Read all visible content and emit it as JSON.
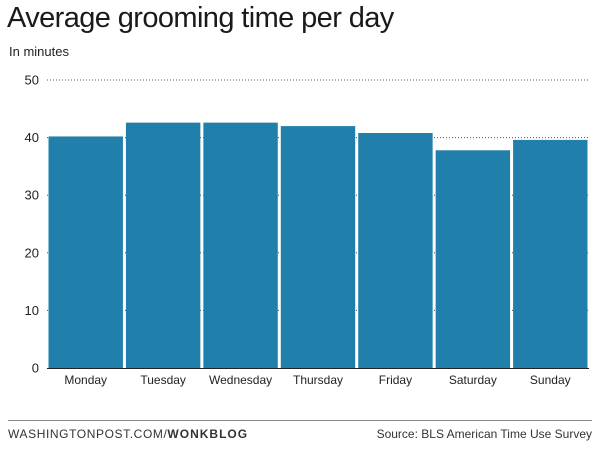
{
  "header": {
    "title": "Average grooming time per day",
    "subtitle": "In minutes"
  },
  "footer": {
    "site": "WASHINGTONPOST.COM/",
    "section": "WONKBLOG",
    "source": "Source: BLS American Time Use Survey"
  },
  "colors": {
    "bar": "#2180ab",
    "grid": "#555555",
    "text": "#222222"
  },
  "chart_data": {
    "type": "bar",
    "title": "Average grooming time per day",
    "subtitle": "In minutes",
    "xlabel": "",
    "ylabel": "",
    "categories": [
      "Monday",
      "Tuesday",
      "Wednesday",
      "Thursday",
      "Friday",
      "Saturday",
      "Sunday"
    ],
    "values": [
      40.2,
      42.6,
      42.6,
      42.0,
      40.8,
      37.8,
      39.6
    ],
    "ylim": [
      0,
      50
    ],
    "yticks": [
      0,
      10,
      20,
      30,
      40,
      50
    ],
    "grid": "horizontal dotted",
    "legend": "none"
  }
}
